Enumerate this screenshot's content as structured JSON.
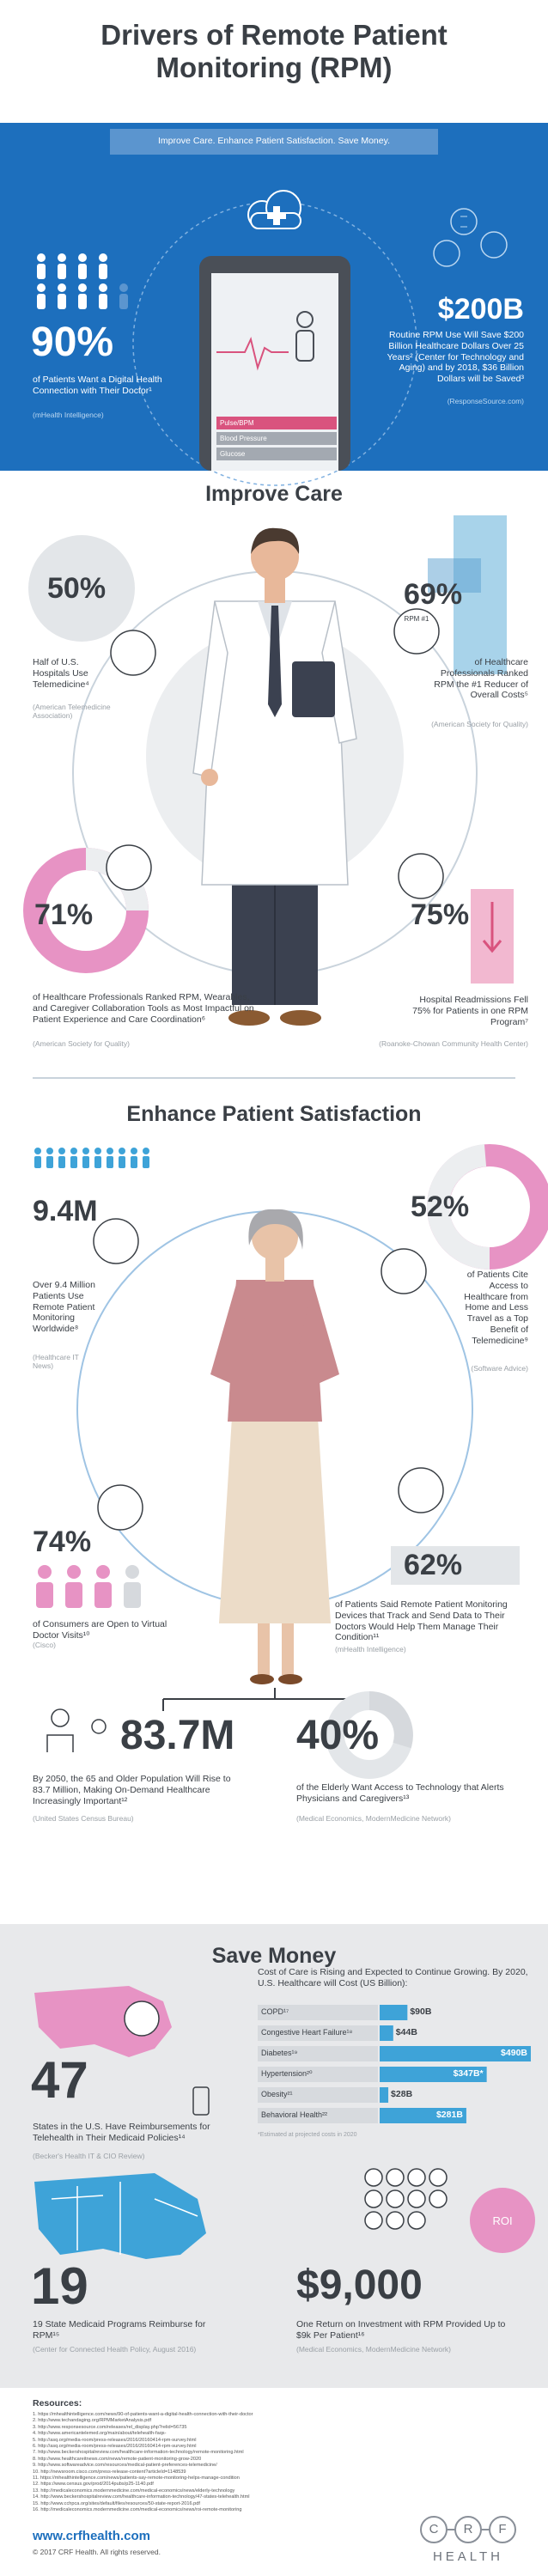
{
  "header": {
    "title": "Drivers of Remote Patient Monitoring (RPM)",
    "subtitle": "Improve Care. Enhance Patient Satisfaction. Save Money."
  },
  "intro": {
    "stats": [
      {
        "value": "90%",
        "text": "of Patients Want a Digital Health Connection with Their Doctor¹",
        "source": "(mHealth Intelligence)"
      },
      {
        "value": "$200B",
        "text": "Routine RPM Use Will Save $200 Billion Healthcare Dollars Over 25 Years² (Center for Technology and Aging) and by 2018, $36 Billion Dollars will be Saved³",
        "source": "(ResponseSource.com)"
      }
    ],
    "phone_buttons": [
      "Pulse/BPM",
      "Blood Pressure",
      "Glucose"
    ]
  },
  "improve_care": {
    "title": "Improve Care",
    "icon_label": "RPM #1",
    "stats": [
      {
        "value": "50%",
        "text": "Half of U.S. Hospitals Use Telemedicine⁴",
        "source": "(American Telemedicine Association)"
      },
      {
        "value": "69%",
        "text": "of Healthcare Professionals Ranked RPM the #1 Reducer of Overall Costs⁵",
        "source": "(American Society for Quality)"
      },
      {
        "value": "71%",
        "text": "of Healthcare Professionals Ranked RPM, Wearables, and Caregiver Collaboration Tools as Most Impactful on Patient Experience and Care Coordination⁶",
        "source": "(American Society for Quality)"
      },
      {
        "value": "75%",
        "text": "Hospital Readmissions Fell 75% for Patients in one RPM Program⁷",
        "source": "(Roanoke-Chowan Community Health Center)"
      }
    ]
  },
  "patient_satisfaction": {
    "title": "Enhance Patient Satisfaction",
    "stats": [
      {
        "value": "9.4M",
        "text": "Over 9.4 Million Patients Use Remote Patient Monitoring Worldwide⁸",
        "source": "(Healthcare IT News)"
      },
      {
        "value": "52%",
        "text": "of Patients Cite Access to Healthcare from Home and Less Travel as a Top Benefit of Telemedicine⁹",
        "source": "(Software Advice)"
      },
      {
        "value": "74%",
        "text": "of Consumers are Open to Virtual Doctor Visits¹⁰",
        "source": "(Cisco)"
      },
      {
        "value": "62%",
        "text": "of Patients Said Remote Patient Monitoring Devices that Track and Send Data to Their Doctors Would Help Them Manage Their Condition¹¹",
        "source": "(mHealth Intelligence)"
      },
      {
        "value": "83.7M",
        "text": "By 2050, the 65 and Older Population Will Rise to 83.7 Million, Making On-Demand Healthcare Increasingly Important¹²",
        "source": "(United States Census Bureau)"
      },
      {
        "value": "40%",
        "text": "of the Elderly Want Access to Technology that Alerts Physicians and Caregivers¹³",
        "source": "(Medical Economics, ModernMedicine Network)"
      }
    ]
  },
  "save_money": {
    "title": "Save Money",
    "roi_label": "ROI",
    "stats": [
      {
        "value": "47",
        "text": "States in the U.S. Have Reimbursements for Telehealth in Their Medicaid Policies¹⁴",
        "source": "(Becker's Health IT & CIO Review)"
      },
      {
        "value": "19",
        "text": "19 State Medicaid Programs Reimburse for RPM¹⁵",
        "source": "(Center for Connected Health Policy, August 2016)"
      },
      {
        "value": "$9,000",
        "text": "One Return on Investment with RPM Provided Up to $9k Per Patient¹⁶",
        "source": "(Medical Economics, ModernMedicine Network)"
      }
    ],
    "cost_chart": {
      "type": "bar",
      "title": "Cost of Care is Rising and Expected to Continue Growing. By 2020, U.S. Healthcare will Cost (US Billion):",
      "categories": [
        "COPD¹⁷",
        "Congestive Heart Failure¹⁸",
        "Diabetes¹⁹",
        "Hypertension²⁰",
        "Obesity²¹",
        "Behavioral Health²²"
      ],
      "values": [
        90,
        44,
        490,
        347,
        28,
        281
      ],
      "value_labels": [
        "$90B",
        "$44B",
        "$490B",
        "$347B*",
        "$28B",
        "$281B"
      ],
      "color": "#3ea3d8",
      "note": "*Estimated at projected costs in 2020"
    }
  },
  "resources": {
    "title": "Resources:",
    "items": [
      "1. https://mhealthintelligence.com/news/90-of-patients-want-a-digital-health-connection-with-their-doctor",
      "2. http://www.techandaging.org/RPMMarketAnalysis.pdf",
      "3. http://www.responsesource.com/releases/rel_display.php?relid=56735",
      "4. http://www.americantelemed.org/main/about/telehealth-faqs-",
      "5. http://asq.org/media-room/press-releases/2016/20160414-rpm-survey.html",
      "6. http://asq.org/media-room/press-releases/2016/20160414-rpm-survey.html",
      "7. http://www.beckershospitalreview.com/healthcare-information-technology/remote-monitoring.html",
      "8. http://www.healthcareitnews.com/news/remote-patient-monitoring-grow-2020",
      "9. http://www.softwareadvice.com/resources/medical-patient-preferences-telemedicine/",
      "10. http://newsroom.cisco.com/press-release-content?articleId=1148539",
      "11. https://mhealthintelligence.com/news/patients-say-remote-monitoring-helps-manage-condition",
      "12. https://www.census.gov/prod/2014pubs/p25-1140.pdf",
      "13. http://medicaleconomics.modernmedicine.com/medical-economics/news/elderly-technology",
      "14. http://www.beckershospitalreview.com/healthcare-information-technology/47-states-telehealth.html",
      "15. http://www.cchpca.org/sites/default/files/resources/50-state-report-2016.pdf",
      "16. http://medicaleconomics.modernmedicine.com/medical-economics/news/roi-remote-monitoring"
    ]
  },
  "footer": {
    "url": "www.crfhealth.com",
    "copyright": "© 2017 CRF Health. All rights reserved.",
    "logo_letters": [
      "C",
      "R",
      "F"
    ],
    "logo_sub": "HEALTH"
  }
}
